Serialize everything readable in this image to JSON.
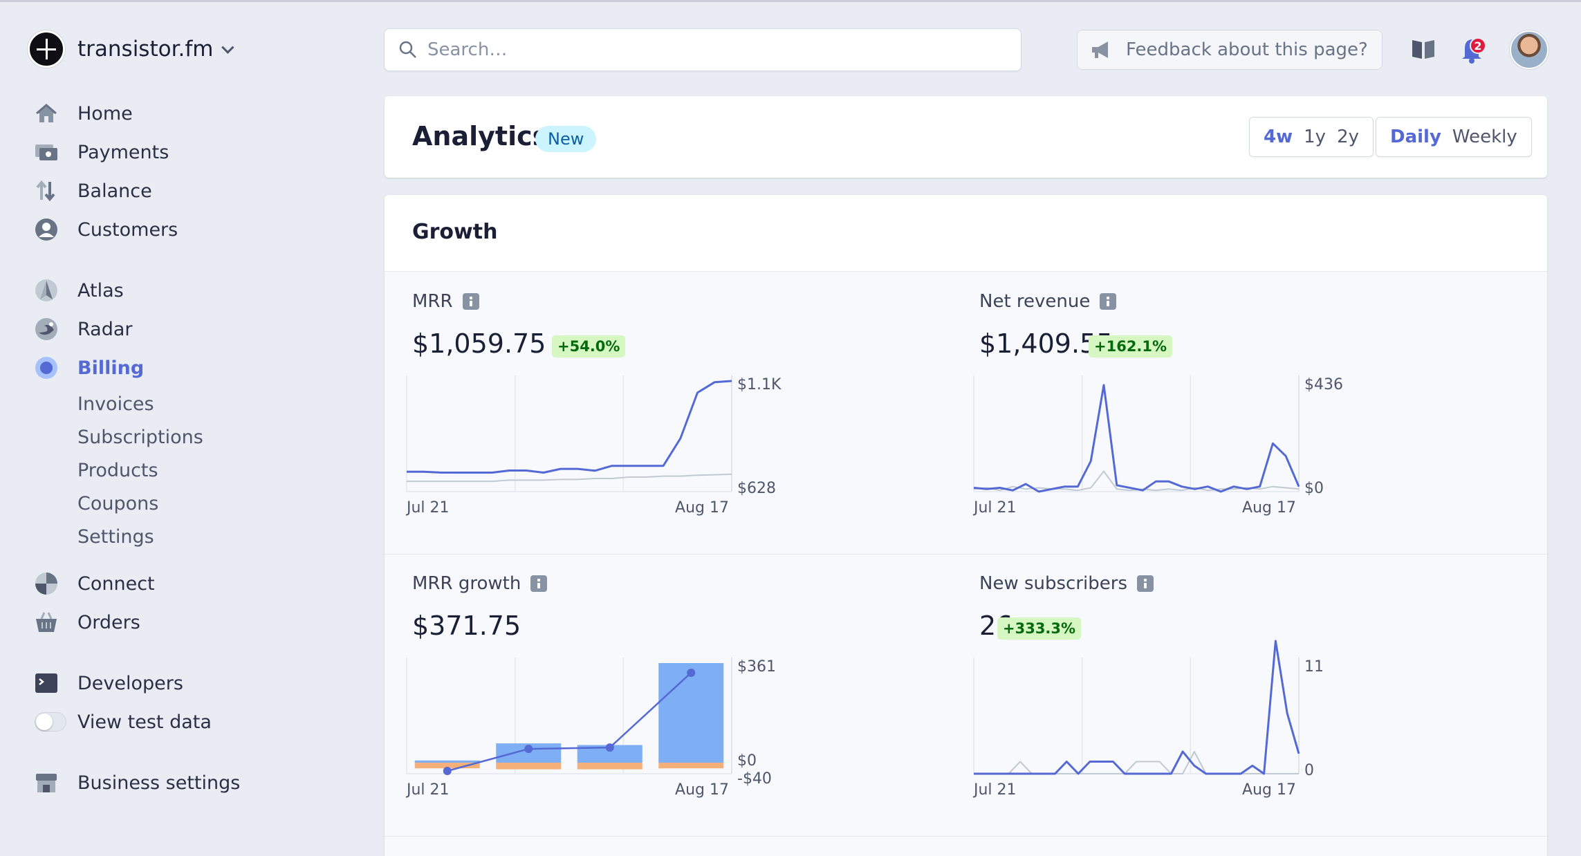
{
  "brand": {
    "name": "transistor.fm"
  },
  "nav": {
    "items": [
      {
        "label": "Home"
      },
      {
        "label": "Payments"
      },
      {
        "label": "Balance"
      },
      {
        "label": "Customers"
      },
      {
        "label": "Atlas"
      },
      {
        "label": "Radar"
      },
      {
        "label": "Billing"
      },
      {
        "label": "Connect"
      },
      {
        "label": "Orders"
      },
      {
        "label": "Developers"
      },
      {
        "label": "View test data"
      },
      {
        "label": "Business settings"
      }
    ],
    "billing_sub": [
      "Invoices",
      "Subscriptions",
      "Products",
      "Coupons",
      "Settings"
    ]
  },
  "search": {
    "placeholder": "Search…"
  },
  "feedback": {
    "label": "Feedback about this page?"
  },
  "notifications": {
    "count": "2"
  },
  "header": {
    "title": "Analytics",
    "badge": "New",
    "ranges": [
      "4w",
      "1y",
      "2y"
    ],
    "selected_range": "4w",
    "intervals": [
      "Daily",
      "Weekly"
    ],
    "selected_interval": "Daily"
  },
  "growth": {
    "title": "Growth",
    "metrics": {
      "mrr": {
        "title": "MRR",
        "value": "$1,059.75",
        "delta": "+54.0%"
      },
      "net_revenue": {
        "title": "Net revenue",
        "value": "$1,409.55",
        "delta": "+162.1%"
      },
      "mrr_growth": {
        "title": "MRR growth",
        "value": "$371.75"
      },
      "new_subscribers": {
        "title": "New subscribers",
        "value": "26",
        "delta": "+333.3%"
      }
    }
  },
  "colors": {
    "accent": "#5469d4",
    "bar_blue": "#7eaef3",
    "bar_orange": "#f5b07a",
    "compare": "#c1c9d2",
    "positive_bg": "#d7f7c2"
  },
  "chart_data": [
    {
      "id": "mrr",
      "type": "line",
      "x_labels": [
        "Jul 21",
        "Aug 17"
      ],
      "y_labels": [
        "$1.1K",
        "$628"
      ],
      "ylim": [
        628,
        1100
      ],
      "series": [
        {
          "values": [
            713,
            713,
            709,
            709,
            709,
            709,
            718,
            718,
            709,
            725,
            725,
            717,
            738,
            738,
            738,
            738,
            855,
            1050,
            1095,
            1100
          ]
        },
        {
          "values": [
            672,
            672,
            672,
            672,
            672,
            672,
            677,
            677,
            677,
            680,
            680,
            684,
            684,
            690,
            690,
            694,
            694,
            698,
            700,
            702
          ]
        }
      ]
    },
    {
      "id": "net_revenue",
      "type": "line",
      "x_labels": [
        "Jul 21",
        "Aug 17"
      ],
      "y_labels": [
        "$436",
        "$0"
      ],
      "ylim": [
        0,
        436
      ],
      "series": [
        {
          "values": [
            15,
            10,
            15,
            5,
            30,
            0,
            10,
            20,
            20,
            120,
            420,
            25,
            15,
            5,
            40,
            40,
            20,
            10,
            20,
            0,
            20,
            10,
            20,
            190,
            140,
            20
          ]
        },
        {
          "values": [
            10,
            15,
            5,
            20,
            10,
            15,
            10,
            10,
            5,
            15,
            80,
            10,
            5,
            10,
            5,
            10,
            5,
            15,
            5,
            10,
            10,
            15,
            10,
            20,
            15,
            10
          ]
        }
      ]
    },
    {
      "id": "mrr_growth",
      "type": "bar",
      "x_labels": [
        "Jul 21",
        "Aug 17"
      ],
      "y_labels": [
        "$361",
        "$0",
        "-$40"
      ],
      "ylim": [
        -40,
        361
      ],
      "bars": [
        {
          "positive": 8,
          "negative": -30
        },
        {
          "positive": 70,
          "negative": -40
        },
        {
          "positive": 64,
          "negative": -40
        },
        {
          "positive": 361,
          "negative": -30
        }
      ],
      "line": [
        -30,
        50,
        55,
        326
      ]
    },
    {
      "id": "new_subscribers",
      "type": "line",
      "x_labels": [
        "Jul 21",
        "Aug 17"
      ],
      "y_labels": [
        "11",
        "0"
      ],
      "ylim": [
        0,
        11
      ],
      "series": [
        {
          "values": [
            0,
            0,
            0,
            0,
            0,
            0,
            0,
            0,
            1.2,
            0,
            1.2,
            1.2,
            1.2,
            0,
            0,
            0,
            0,
            0,
            2.2,
            0.8,
            0,
            0,
            0,
            0,
            0.8,
            0,
            13.2,
            6,
            2
          ]
        },
        {
          "values": [
            0,
            0,
            0,
            0,
            1.2,
            0,
            0,
            0,
            0,
            0,
            0,
            0,
            0,
            0,
            1.2,
            1.2,
            1.2,
            0,
            0,
            2.2,
            0,
            0,
            0,
            0,
            0,
            0,
            0,
            0,
            0
          ]
        }
      ]
    }
  ]
}
